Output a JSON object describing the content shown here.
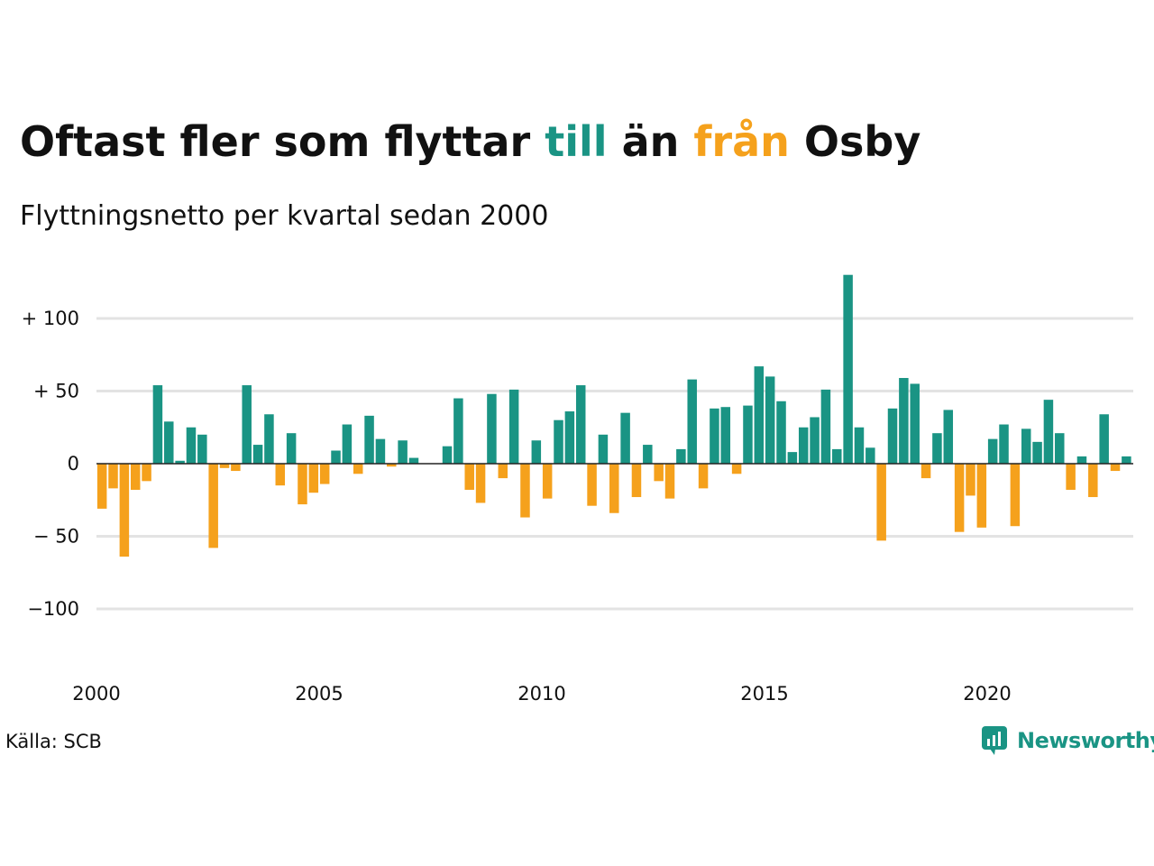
{
  "header": {
    "title_parts": [
      "Oftast fler som flyttar ",
      "till",
      " än ",
      "från",
      " Osby"
    ],
    "subtitle": "Flyttningsnetto per kvartal sedan 2000"
  },
  "footer": {
    "source": "Källa: SCB",
    "brand": "Newsworthy",
    "brand_icon": "newsworthy-logo-icon"
  },
  "colors": {
    "positive": "#1a9484",
    "negative": "#f5a11c",
    "grid": "#e3e3e3",
    "zero_line": "#222222"
  },
  "chart_data": {
    "type": "bar",
    "title": "Oftast fler som flyttar till än från Osby",
    "subtitle": "Flyttningsnetto per kvartal sedan 2000",
    "x_axis": {
      "tick_values": [
        2000,
        2005,
        2010,
        2015,
        2020
      ],
      "tick_labels": [
        "2000",
        "2005",
        "2010",
        "2015",
        "2020"
      ]
    },
    "y_axis": {
      "tick_values": [
        100,
        50,
        0,
        -50,
        -100
      ],
      "tick_labels": [
        "+ 100",
        "+  50",
        "0",
        "− 50",
        "−100"
      ],
      "range": [
        -140,
        130
      ]
    },
    "grid": true,
    "start": {
      "year": 2000,
      "quarter": 1
    },
    "values": [
      -31,
      -17,
      -64,
      -18,
      -12,
      54,
      29,
      2,
      25,
      20,
      -58,
      -3,
      -5,
      54,
      13,
      34,
      -15,
      21,
      -28,
      -20,
      -14,
      9,
      27,
      -7,
      33,
      17,
      -2,
      16,
      4,
      0,
      0,
      12,
      45,
      -18,
      -27,
      48,
      -10,
      51,
      -37,
      16,
      -24,
      30,
      36,
      54,
      -29,
      20,
      -34,
      35,
      -23,
      13,
      -12,
      -24,
      10,
      58,
      -17,
      38,
      39,
      -7,
      40,
      67,
      60,
      43,
      8,
      25,
      32,
      51,
      10,
      130,
      25,
      11,
      -53,
      38,
      59,
      55,
      -10,
      21,
      37,
      -47,
      -22,
      -44,
      17,
      27,
      -43,
      24,
      15,
      44,
      21,
      -18,
      5,
      -23,
      34,
      -5,
      5
    ]
  }
}
